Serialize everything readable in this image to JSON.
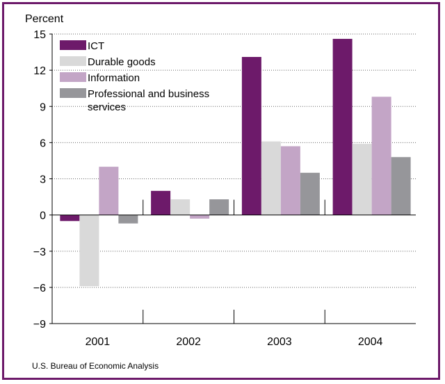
{
  "chart_data": {
    "type": "bar",
    "ylabel": "Percent",
    "ylim": [
      -9,
      15
    ],
    "yticks": [
      15,
      12,
      9,
      6,
      3,
      0,
      -3,
      -6,
      -9
    ],
    "ytick_labels": [
      "15",
      "12",
      "9",
      "6",
      "3",
      "0",
      "−3",
      "−6",
      "−9"
    ],
    "grid": "horizontal dotted",
    "legend_position": "top-left",
    "categories": [
      "2001",
      "2002",
      "2003",
      "2004"
    ],
    "series": [
      {
        "name": "ICT",
        "color": "#6d1a6a",
        "values": [
          -0.5,
          2.0,
          13.1,
          14.6
        ]
      },
      {
        "name": "Durable goods",
        "color": "#d9d9d9",
        "values": [
          -5.9,
          1.3,
          6.1,
          5.9
        ]
      },
      {
        "name": "Information",
        "color": "#c3a5c6",
        "values": [
          4.0,
          -0.3,
          5.7,
          9.8
        ]
      },
      {
        "name": "Professional and business services",
        "name_lines": [
          "Professional and business",
          "services"
        ],
        "color": "#96969a",
        "values": [
          -0.7,
          1.3,
          3.5,
          4.8
        ]
      }
    ],
    "source": "U.S. Bureau of Economic Analysis"
  }
}
